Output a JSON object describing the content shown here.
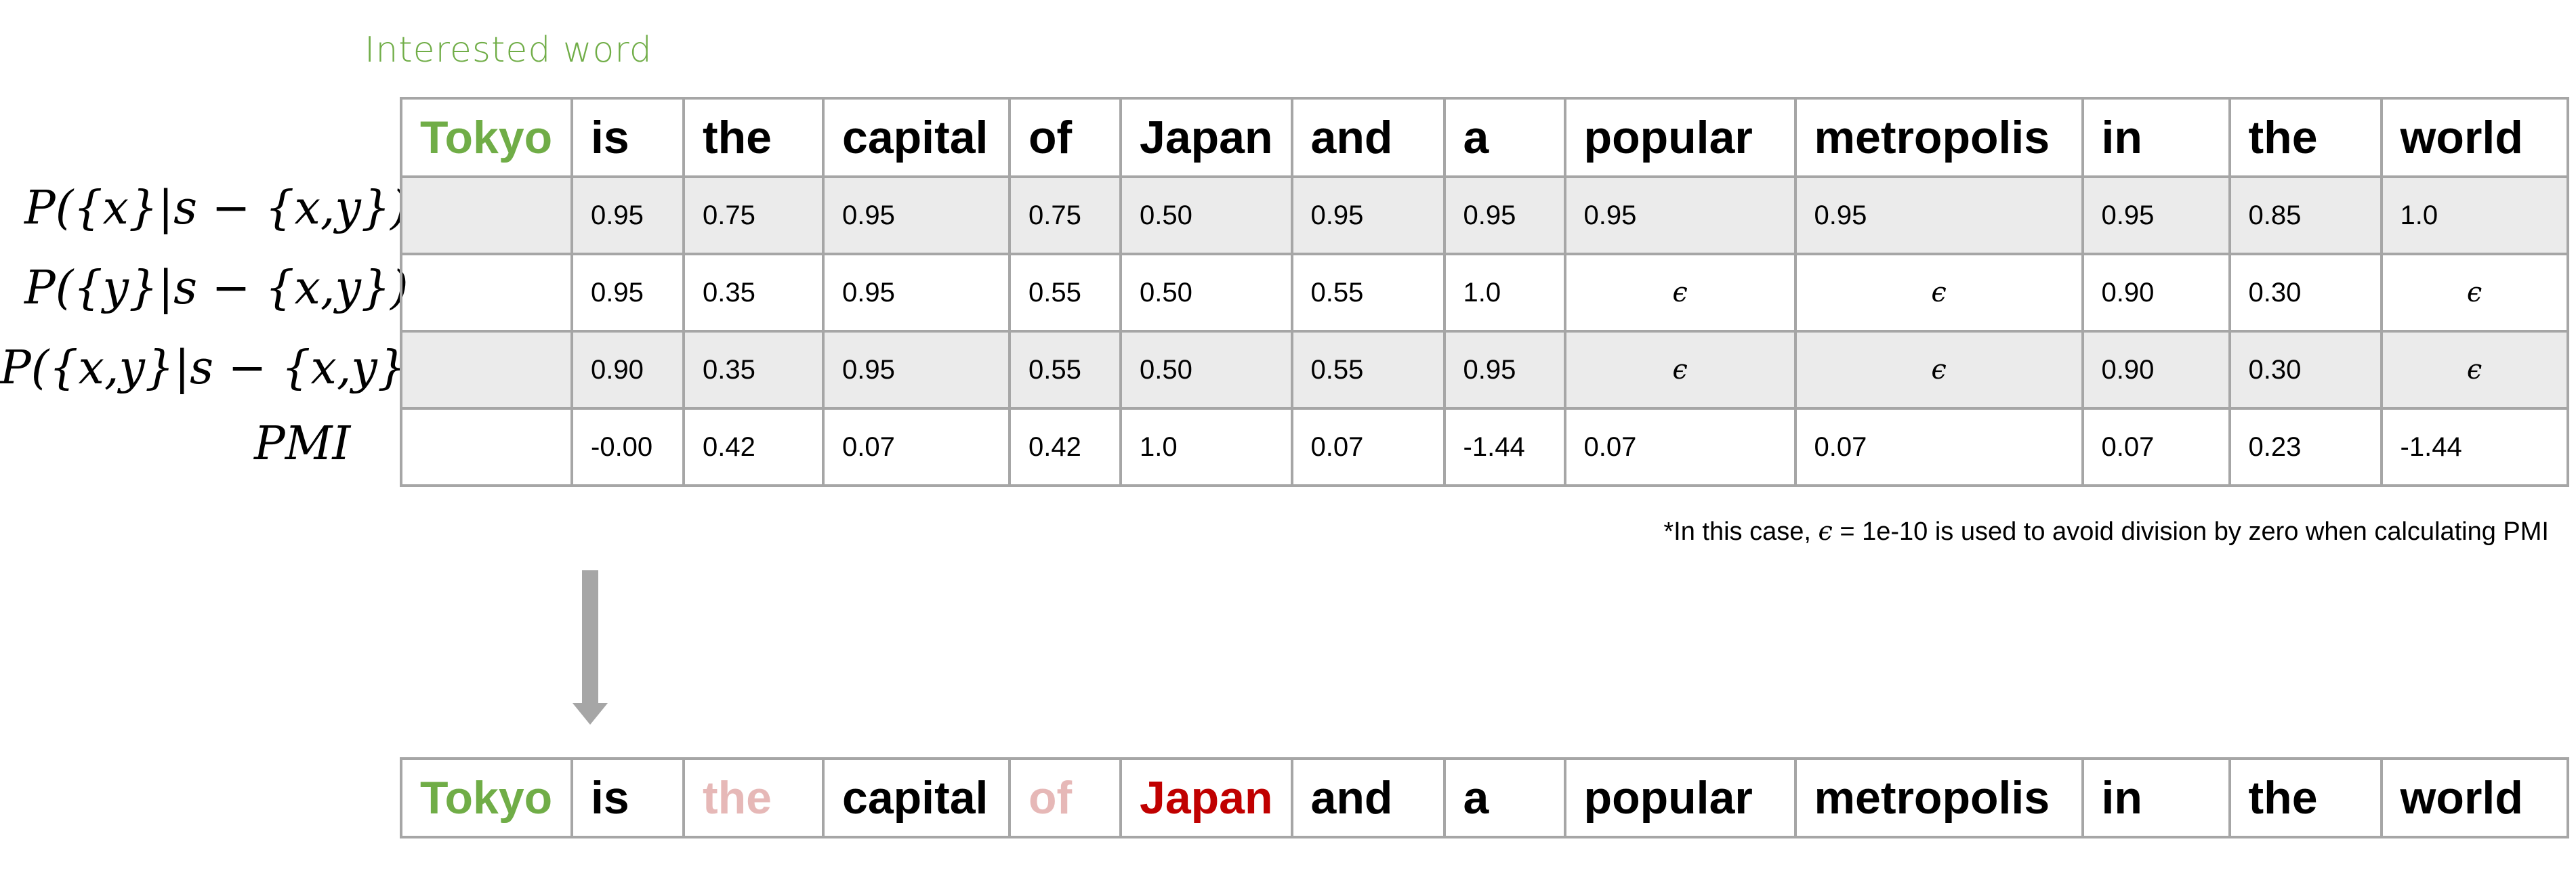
{
  "annotation": "Interested word",
  "words": [
    "Tokyo",
    "is",
    "the",
    "capital",
    "of",
    "Japan",
    "and",
    "a",
    "popular",
    "metropolis",
    "in",
    "the",
    "world"
  ],
  "rows": [
    {
      "label": "P({x}|s − {x,y})",
      "values": [
        "0.95",
        "0.75",
        "0.95",
        "0.75",
        "0.50",
        "0.95",
        "0.95",
        "0.95",
        "0.95",
        "0.95",
        "0.85",
        "1.0"
      ]
    },
    {
      "label": "P({y}|s − {x,y})",
      "values": [
        "0.95",
        "0.35",
        "0.95",
        "0.55",
        "0.50",
        "0.55",
        "1.0",
        "ϵ",
        "ϵ",
        "0.90",
        "0.30",
        "ϵ"
      ]
    },
    {
      "label": "P({x,y}|s − {x,y})",
      "values": [
        "0.90",
        "0.35",
        "0.95",
        "0.55",
        "0.50",
        "0.55",
        "0.95",
        "ϵ",
        "ϵ",
        "0.90",
        "0.30",
        "ϵ"
      ]
    },
    {
      "label": "PMI",
      "values": [
        "-0.00",
        "0.42",
        "0.07",
        "0.42",
        "1.0",
        "0.07",
        "-1.44",
        "0.07",
        "0.07",
        "0.07",
        "0.23",
        "-1.44"
      ]
    }
  ],
  "note": {
    "prefix": "*In this case, ",
    "symbol": "ϵ",
    "suffix": " = 1e-10 is used to avoid division by zero when calculating PMI"
  },
  "result_words": [
    {
      "text": "Tokyo",
      "style": "interest"
    },
    {
      "text": "is",
      "style": "normal"
    },
    {
      "text": "the",
      "style": "low"
    },
    {
      "text": "capital",
      "style": "normal"
    },
    {
      "text": "of",
      "style": "low"
    },
    {
      "text": "Japan",
      "style": "high"
    },
    {
      "text": "and",
      "style": "normal"
    },
    {
      "text": "a",
      "style": "normal"
    },
    {
      "text": "popular",
      "style": "normal"
    },
    {
      "text": "metropolis",
      "style": "normal"
    },
    {
      "text": "in",
      "style": "normal"
    },
    {
      "text": "the",
      "style": "normal"
    },
    {
      "text": "world",
      "style": "normal"
    }
  ],
  "colors": {
    "interest": "#70ad47",
    "low": "#e6b8b7",
    "high": "#c00000",
    "shade": "#ebebeb",
    "border": "#a6a6a6",
    "arrow": "#a6a6a6"
  }
}
